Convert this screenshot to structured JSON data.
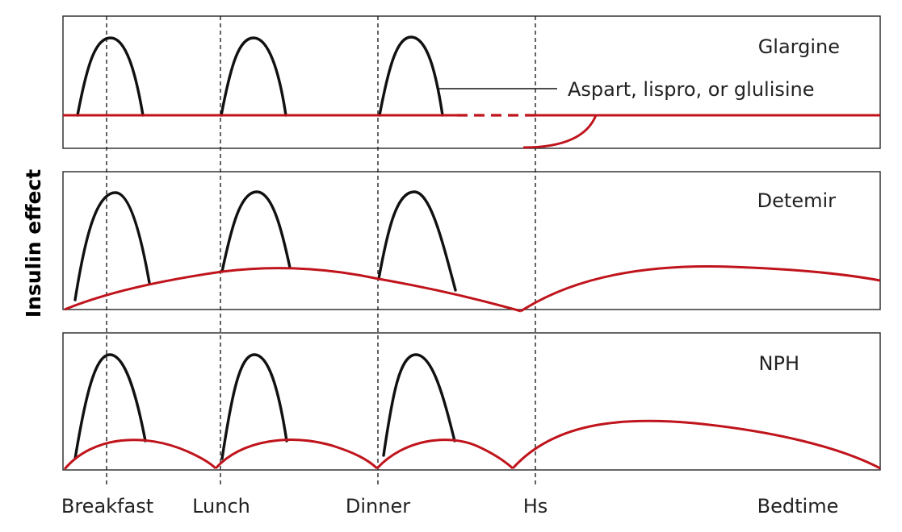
{
  "y_axis_title": "Insulin effect",
  "time_labels": [
    "Breakfast",
    "Lunch",
    "Dinner",
    "Hs",
    "Bedtime"
  ],
  "panels": [
    {
      "name": "Glargine",
      "annotation": "Aspart, lispro, or glulisine"
    },
    {
      "name": "Detemir"
    },
    {
      "name": "NPH"
    }
  ],
  "colors": {
    "rapid_acting": "#111111",
    "basal": "#c0141c",
    "frame": "#333333"
  }
}
